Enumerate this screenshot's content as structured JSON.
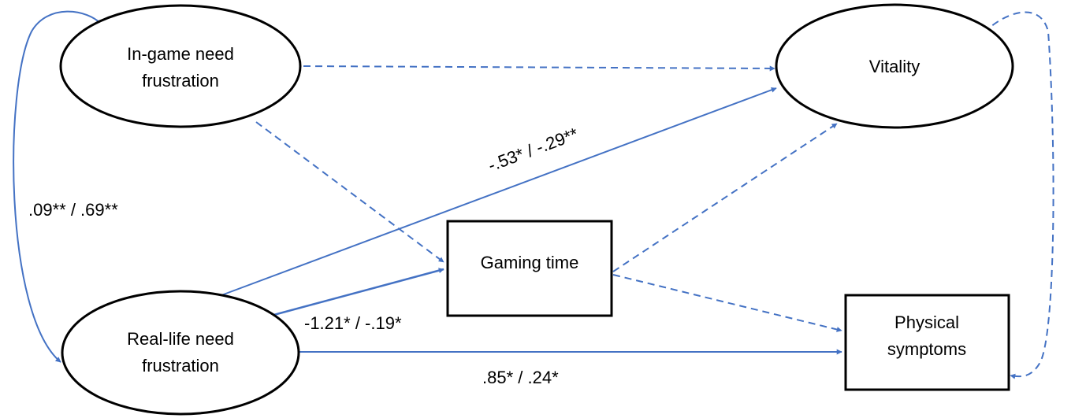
{
  "colors": {
    "arrow": "#4472C4",
    "outline": "#000000",
    "background": "#ffffff"
  },
  "nodes": {
    "in_game": {
      "shape": "ellipse",
      "lines": [
        "In-game need",
        "frustration"
      ]
    },
    "real_life": {
      "shape": "ellipse",
      "lines": [
        "Real-life need",
        "frustration"
      ]
    },
    "vitality": {
      "shape": "ellipse",
      "lines": [
        "Vitality"
      ]
    },
    "gaming_time": {
      "shape": "rectangle",
      "lines": [
        "Gaming time"
      ]
    },
    "physical": {
      "shape": "rectangle",
      "lines": [
        "Physical",
        "symptoms"
      ]
    }
  },
  "paths": [
    {
      "from": "In-game need frustration",
      "to": "Vitality",
      "style": "dashed",
      "label": ""
    },
    {
      "from": "In-game need frustration",
      "to": "Gaming time",
      "style": "dashed",
      "label": ""
    },
    {
      "from": "Real-life need frustration",
      "to": "Vitality",
      "style": "solid",
      "label": "-.53* / -.29**"
    },
    {
      "from": "Real-life need frustration",
      "to": "Gaming time",
      "style": "solid",
      "label": "-1.21* / -.19*"
    },
    {
      "from": "Real-life need frustration",
      "to": "Physical symptoms",
      "style": "solid",
      "label": ".85* / .24*"
    },
    {
      "from": "Gaming time",
      "to": "Vitality",
      "style": "dashed",
      "label": ""
    },
    {
      "from": "Gaming time",
      "to": "Physical symptoms",
      "style": "dashed",
      "label": ""
    }
  ],
  "covariances": [
    {
      "between": [
        "In-game need frustration",
        "Real-life need frustration"
      ],
      "style": "solid",
      "label": ".09** / .69**"
    },
    {
      "between": [
        "Vitality",
        "Physical symptoms"
      ],
      "style": "dashed",
      "label": ""
    }
  ]
}
